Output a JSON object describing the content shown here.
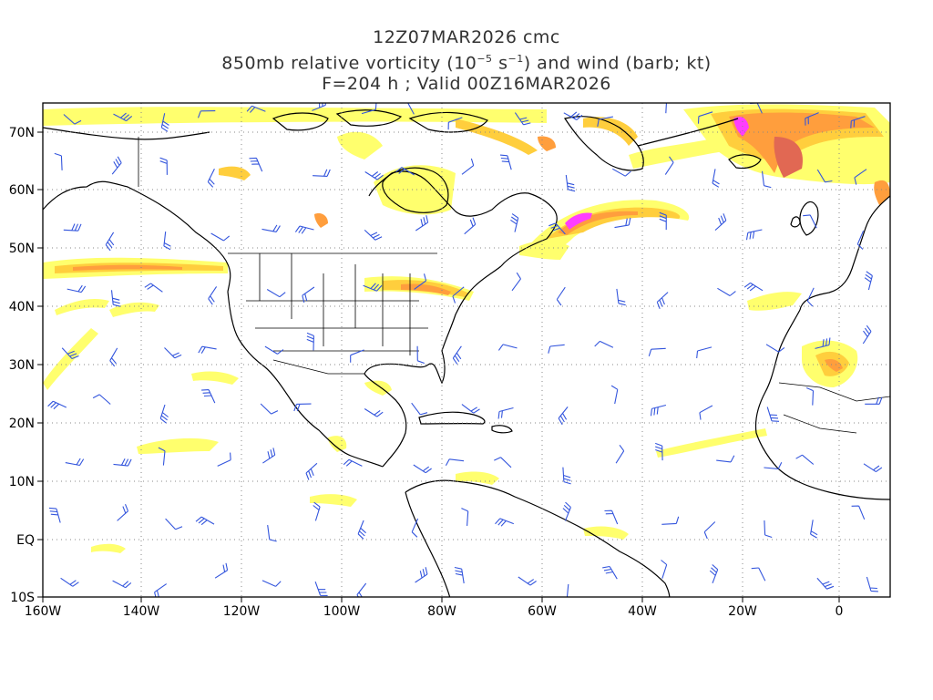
{
  "title": {
    "line1": "12Z07MAR2026 cmc",
    "line2_prefix": "850mb relative vorticity (10",
    "line2_exp1": "−5",
    "line2_mid": " s",
    "line2_exp2": "−1",
    "line2_suffix": ") and wind (barb; kt)",
    "line3": "F=204 h ; Valid 00Z16MAR2026"
  },
  "axes": {
    "lon_labels": [
      "160W",
      "140W",
      "120W",
      "100W",
      "80W",
      "60W",
      "40W",
      "20W",
      "0"
    ],
    "lat_labels": [
      "70N",
      "60N",
      "50N",
      "40N",
      "30N",
      "20N",
      "10N",
      "EQ",
      "10S"
    ]
  },
  "colors": {
    "shade_light": "#ffff66",
    "shade_mid": "#ffcc33",
    "shade_orange": "#ff9933",
    "shade_red": "#e0604a",
    "shade_magenta": "#ff33ff",
    "barbs": "#3355dd",
    "coast": "#000000",
    "grid": "#888888"
  }
}
